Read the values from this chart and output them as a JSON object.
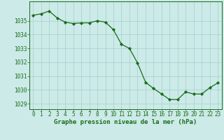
{
  "x": [
    0,
    1,
    2,
    3,
    4,
    5,
    6,
    7,
    8,
    9,
    10,
    11,
    12,
    13,
    14,
    15,
    16,
    17,
    18,
    19,
    20,
    21,
    22,
    23
  ],
  "y": [
    1035.4,
    1035.5,
    1035.7,
    1035.2,
    1034.9,
    1034.8,
    1034.85,
    1034.85,
    1035.0,
    1034.9,
    1034.35,
    1033.3,
    1033.0,
    1031.95,
    1030.55,
    1030.1,
    1029.7,
    1029.3,
    1029.3,
    1029.85,
    1029.7,
    1029.7,
    1030.15,
    1030.5
  ],
  "line_color": "#1a6b1a",
  "marker": "D",
  "marker_size": 2.2,
  "bg_color": "#cceae8",
  "grid_color": "#aad4d0",
  "xlabel": "Graphe pression niveau de la mer (hPa)",
  "xlabel_fontsize": 6.5,
  "xlabel_color": "#1a6b1a",
  "tick_color": "#1a6b1a",
  "tick_fontsize": 5.5,
  "ylim": [
    1028.6,
    1036.4
  ],
  "yticks": [
    1029,
    1030,
    1031,
    1032,
    1033,
    1034,
    1035
  ],
  "xlim": [
    -0.5,
    23.5
  ],
  "xticks": [
    0,
    1,
    2,
    3,
    4,
    5,
    6,
    7,
    8,
    9,
    10,
    11,
    12,
    13,
    14,
    15,
    16,
    17,
    18,
    19,
    20,
    21,
    22,
    23
  ]
}
